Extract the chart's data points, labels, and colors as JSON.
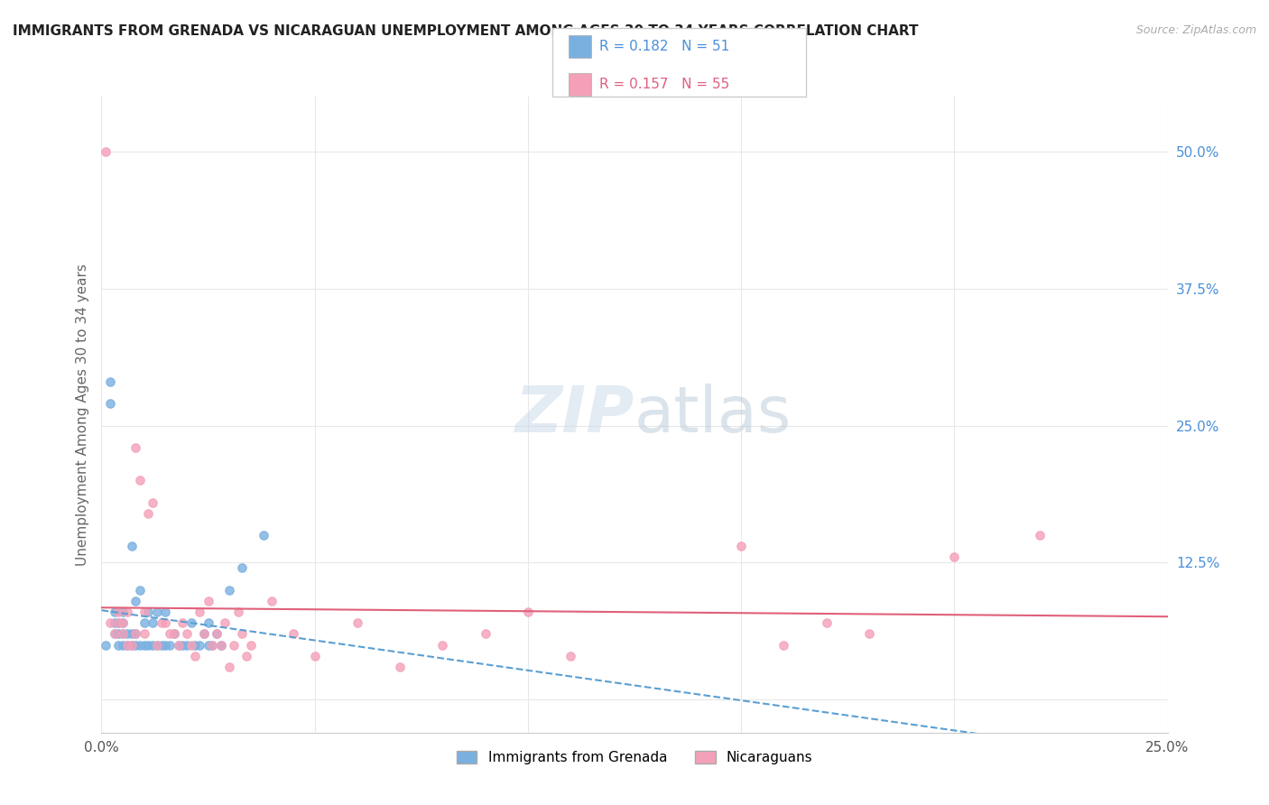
{
  "title": "IMMIGRANTS FROM GRENADA VS NICARAGUAN UNEMPLOYMENT AMONG AGES 30 TO 34 YEARS CORRELATION CHART",
  "source": "Source: ZipAtlas.com",
  "ylabel": "Unemployment Among Ages 30 to 34 years",
  "xlim": [
    0.0,
    0.25
  ],
  "ylim": [
    -0.03,
    0.55
  ],
  "x_ticks": [
    0.0,
    0.05,
    0.1,
    0.15,
    0.2,
    0.25
  ],
  "x_tick_labels": [
    "0.0%",
    "",
    "",
    "",
    "",
    "25.0%"
  ],
  "y_ticks": [
    0.0,
    0.125,
    0.25,
    0.375,
    0.5
  ],
  "y_tick_labels": [
    "",
    "12.5%",
    "25.0%",
    "37.5%",
    "50.0%"
  ],
  "legend_labels": [
    "Immigrants from Grenada",
    "Nicaraguans"
  ],
  "blue_R": 0.182,
  "blue_N": 51,
  "pink_R": 0.157,
  "pink_N": 55,
  "blue_color": "#7ab0e0",
  "pink_color": "#f4a0b8",
  "blue_line_color": "#5a9fd4",
  "pink_line_color": "#e0607a",
  "watermark_color": "#c8d8e8",
  "background_color": "#ffffff",
  "grid_color": "#e8e8e8",
  "blue_x": [
    0.001,
    0.002,
    0.002,
    0.003,
    0.003,
    0.003,
    0.004,
    0.004,
    0.004,
    0.005,
    0.005,
    0.005,
    0.005,
    0.006,
    0.006,
    0.007,
    0.007,
    0.007,
    0.008,
    0.008,
    0.008,
    0.009,
    0.009,
    0.01,
    0.01,
    0.011,
    0.011,
    0.012,
    0.012,
    0.013,
    0.013,
    0.014,
    0.015,
    0.015,
    0.016,
    0.017,
    0.018,
    0.019,
    0.02,
    0.021,
    0.022,
    0.023,
    0.024,
    0.025,
    0.025,
    0.026,
    0.027,
    0.028,
    0.03,
    0.033,
    0.038
  ],
  "blue_y": [
    0.05,
    0.27,
    0.29,
    0.06,
    0.07,
    0.08,
    0.05,
    0.06,
    0.07,
    0.05,
    0.06,
    0.07,
    0.08,
    0.05,
    0.06,
    0.05,
    0.06,
    0.14,
    0.05,
    0.06,
    0.09,
    0.05,
    0.1,
    0.05,
    0.07,
    0.05,
    0.08,
    0.05,
    0.07,
    0.05,
    0.08,
    0.05,
    0.05,
    0.08,
    0.05,
    0.06,
    0.05,
    0.05,
    0.05,
    0.07,
    0.05,
    0.05,
    0.06,
    0.05,
    0.07,
    0.05,
    0.06,
    0.05,
    0.1,
    0.12,
    0.15
  ],
  "pink_x": [
    0.001,
    0.002,
    0.003,
    0.004,
    0.004,
    0.005,
    0.005,
    0.006,
    0.006,
    0.007,
    0.008,
    0.008,
    0.009,
    0.01,
    0.01,
    0.011,
    0.012,
    0.013,
    0.014,
    0.015,
    0.016,
    0.017,
    0.018,
    0.019,
    0.02,
    0.021,
    0.022,
    0.023,
    0.024,
    0.025,
    0.026,
    0.027,
    0.028,
    0.029,
    0.03,
    0.031,
    0.032,
    0.033,
    0.034,
    0.035,
    0.04,
    0.045,
    0.05,
    0.06,
    0.07,
    0.08,
    0.09,
    0.1,
    0.11,
    0.15,
    0.16,
    0.17,
    0.18,
    0.2,
    0.22
  ],
  "pink_y": [
    0.5,
    0.07,
    0.06,
    0.07,
    0.08,
    0.06,
    0.07,
    0.05,
    0.08,
    0.05,
    0.06,
    0.23,
    0.2,
    0.06,
    0.08,
    0.17,
    0.18,
    0.05,
    0.07,
    0.07,
    0.06,
    0.06,
    0.05,
    0.07,
    0.06,
    0.05,
    0.04,
    0.08,
    0.06,
    0.09,
    0.05,
    0.06,
    0.05,
    0.07,
    0.03,
    0.05,
    0.08,
    0.06,
    0.04,
    0.05,
    0.09,
    0.06,
    0.04,
    0.07,
    0.03,
    0.05,
    0.06,
    0.08,
    0.04,
    0.14,
    0.05,
    0.07,
    0.06,
    0.13,
    0.15
  ]
}
